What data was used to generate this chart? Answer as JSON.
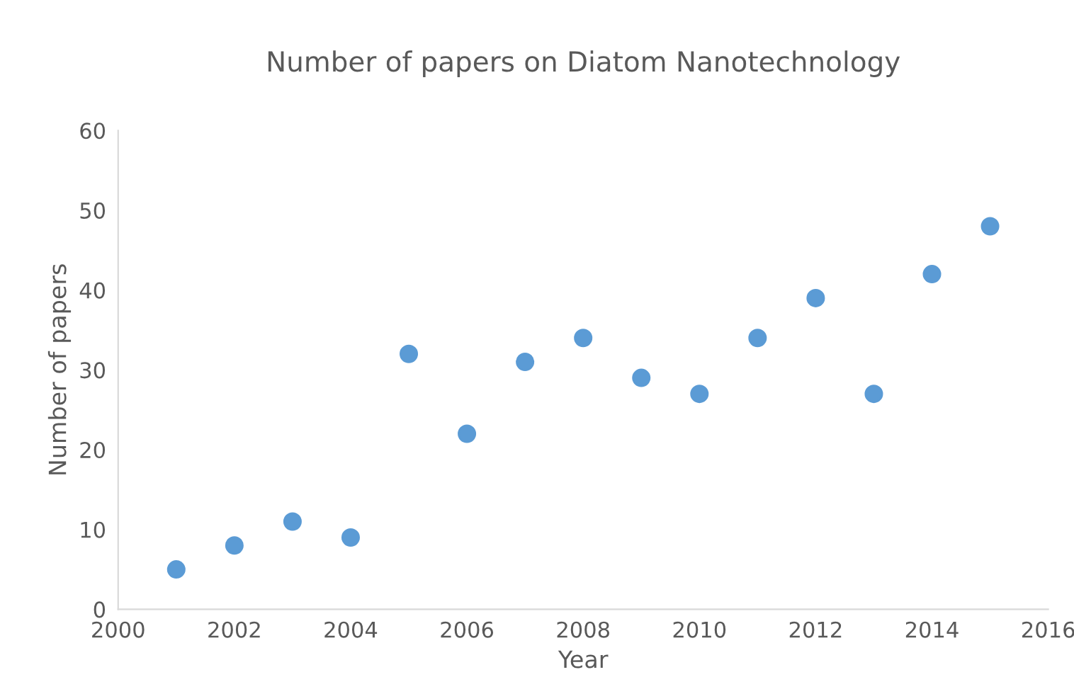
{
  "chart_data": {
    "type": "scatter",
    "title": "Number of papers on Diatom Nanotechnology",
    "xlabel": "Year",
    "ylabel": "Number of papers",
    "x": [
      2001,
      2002,
      2003,
      2004,
      2005,
      2006,
      2007,
      2008,
      2009,
      2010,
      2011,
      2012,
      2013,
      2014,
      2015
    ],
    "values": [
      5,
      8,
      11,
      9,
      32,
      22,
      31,
      34,
      29,
      27,
      34,
      39,
      27,
      42,
      48
    ],
    "color": "#5b9bd5",
    "marker": "circle",
    "xlim": [
      2000,
      2016
    ],
    "xticks": [
      2000,
      2002,
      2004,
      2006,
      2008,
      2010,
      2012,
      2014,
      2016
    ],
    "ylim": [
      0,
      60
    ],
    "yticks": [
      0,
      10,
      20,
      30,
      40,
      50,
      60
    ],
    "grid": false,
    "legend": false
  }
}
